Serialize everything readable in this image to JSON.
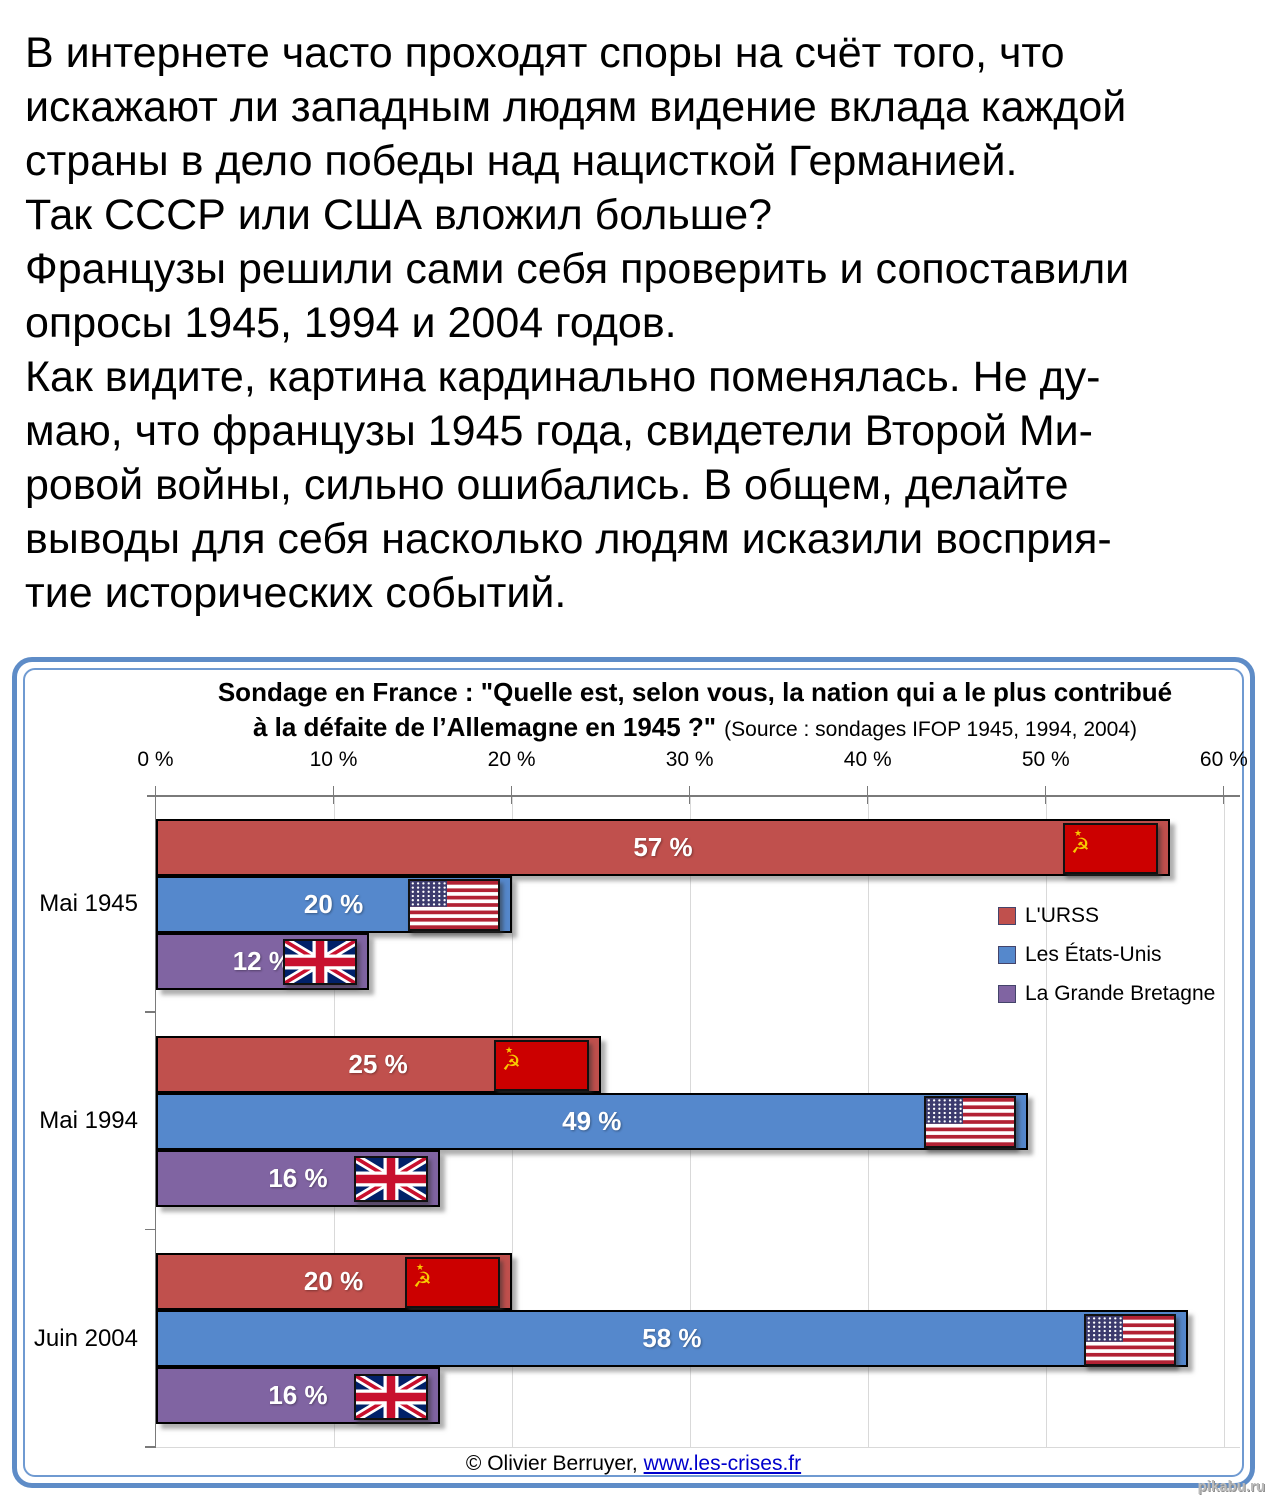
{
  "intro": {
    "lines": [
      "В интернете часто проходят споры на счёт того, что",
      "искажают ли западным людям видение вклада каждой",
      "страны в дело победы над нацисткой Германией.",
      "Так СССР или США вложил больше?",
      "Французы решили сами себя проверить и сопоставили",
      "опросы 1945, 1994 и 2004 годов.",
      "Как видите, картина кардинально поменялась. Не ду-",
      "маю, что французы 1945 года, свидетели Второй Ми-",
      "ровой войны, сильно ошибались. В общем, делайте",
      "выводы для себя насколько людям исказили восприя-",
      "тие исторических событий."
    ]
  },
  "chart": {
    "title_line1": "Sondage en France : \"Quelle est, selon vous, la nation qui a le plus contribué",
    "title_line2_bold": "à la défaite de l’Allemagne en 1945 ?\"",
    "title_source": "(Source : sondages IFOP 1945, 1994, 2004)",
    "footer_prefix": "© Olivier Berruyer,",
    "footer_link": "www.les-crises.fr",
    "watermark": "pikabu.ru"
  },
  "chart_data": {
    "type": "bar",
    "orientation": "horizontal",
    "title": "Sondage en France : \"Quelle est, selon vous, la nation qui a le plus contribué à la défaite de l’Allemagne en 1945 ?\"",
    "subtitle": "(Source : sondages IFOP 1945, 1994, 2004)",
    "categories": [
      "Mai 1945",
      "Mai 1994",
      "Juin 2004"
    ],
    "series": [
      {
        "name": "L'URSS",
        "color": "#C0504D",
        "flag": "ussr",
        "values": [
          57,
          25,
          20
        ]
      },
      {
        "name": "Les États-Unis",
        "color": "#5588CC",
        "flag": "usa",
        "values": [
          20,
          49,
          58
        ]
      },
      {
        "name": "La Grande Bretagne",
        "color": "#8064A2",
        "flag": "uk",
        "values": [
          12,
          16,
          16
        ]
      }
    ],
    "x_ticks": [
      "0 %",
      "10 %",
      "20 %",
      "30 %",
      "40 %",
      "50 %",
      "60 %"
    ],
    "xlim": [
      0,
      60
    ],
    "value_label_format": "{v} %",
    "legend_position": "right-upper",
    "gridlines": true,
    "grid_color": "#D9D9D9",
    "axis_color": "#7a7a7a"
  }
}
